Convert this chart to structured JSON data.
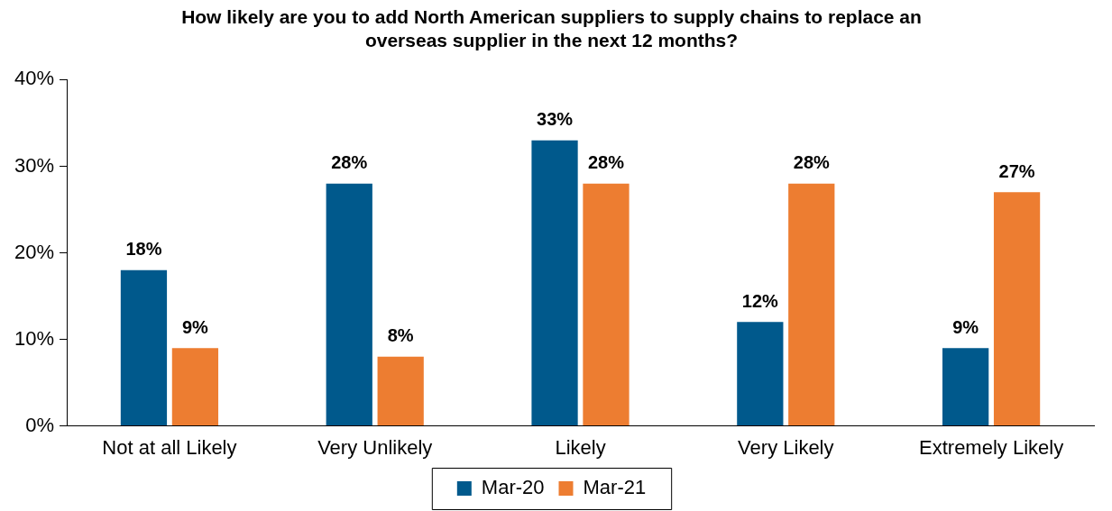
{
  "chart_data": {
    "type": "bar",
    "title": "How likely are you to add North American suppliers to supply chains to replace an overseas supplier in the next 12 months?",
    "categories": [
      "Not at all Likely",
      "Very Unlikely",
      "Likely",
      "Very Likely",
      "Extremely Likely"
    ],
    "series": [
      {
        "name": "Mar-20",
        "color": "#00598c",
        "values": [
          18,
          28,
          33,
          12,
          9
        ],
        "value_labels": [
          "18%",
          "28%",
          "33%",
          "12%",
          "9%"
        ]
      },
      {
        "name": "Mar-21",
        "color": "#ed7d31",
        "values": [
          9,
          8,
          28,
          28,
          27
        ],
        "value_labels": [
          "9%",
          "8%",
          "28%",
          "28%",
          "27%"
        ]
      }
    ],
    "ylim": [
      0,
      40
    ],
    "yticks": [
      {
        "value": 0,
        "label": "0%"
      },
      {
        "value": 10,
        "label": "10%"
      },
      {
        "value": 20,
        "label": "20%"
      },
      {
        "value": 30,
        "label": "30%"
      },
      {
        "value": 40,
        "label": "40%"
      }
    ],
    "grid": false,
    "legend": "bottom"
  }
}
